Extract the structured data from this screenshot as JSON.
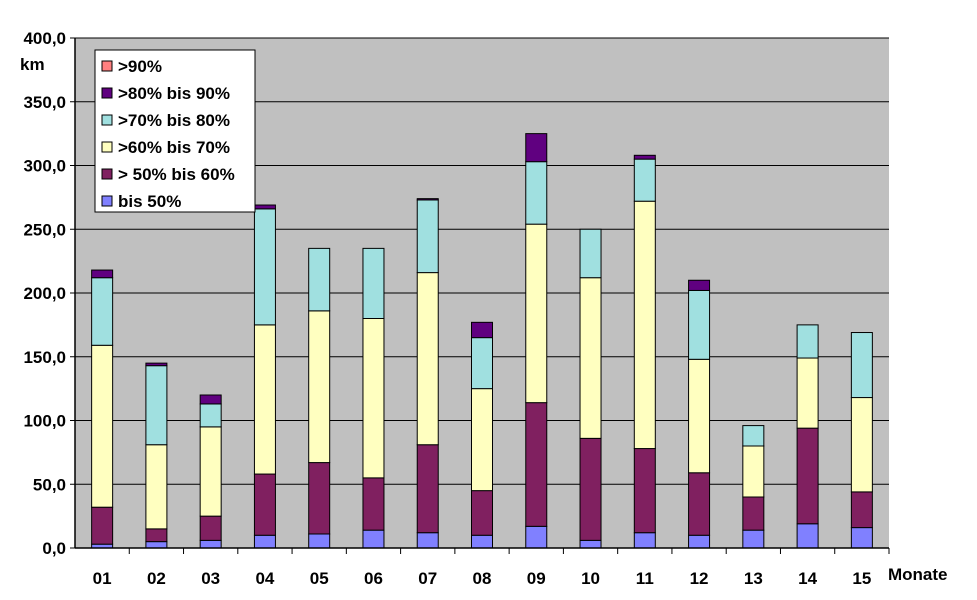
{
  "chart_data": {
    "type": "bar",
    "stacked": true,
    "y_unit": "km",
    "x_unit": "Monate",
    "ylim": [
      0,
      400
    ],
    "ytick_values": [
      0,
      50,
      100,
      150,
      200,
      250,
      300,
      350,
      400
    ],
    "ytick_labels": [
      "0,0",
      "50,0",
      "100,0",
      "150,0",
      "200,0",
      "250,0",
      "300,0",
      "350,0",
      "400,0"
    ],
    "categories": [
      "01",
      "02",
      "03",
      "04",
      "05",
      "06",
      "07",
      "08",
      "09",
      "10",
      "11",
      "12",
      "13",
      "14",
      "15"
    ],
    "grid": "horizontal",
    "plot_background": "#c0c0c0",
    "legend_position": "top-left",
    "series": [
      {
        "name": "bis  50%",
        "color": "#8080ff",
        "values": [
          3,
          5,
          6,
          10,
          11,
          14,
          12,
          10,
          17,
          6,
          12,
          10,
          14,
          19,
          16
        ]
      },
      {
        "name": "> 50% bis 60%",
        "color": "#802060",
        "values": [
          29,
          10,
          19,
          48,
          56,
          41,
          69,
          35,
          97,
          80,
          66,
          49,
          26,
          75,
          28
        ]
      },
      {
        "name": ">60% bis 70%",
        "color": "#ffffc0",
        "values": [
          127,
          66,
          70,
          117,
          119,
          125,
          135,
          80,
          140,
          126,
          194,
          89,
          40,
          55,
          74
        ]
      },
      {
        "name": ">70% bis 80%",
        "color": "#a0e0e0",
        "values": [
          53,
          62,
          18,
          91,
          49,
          55,
          57,
          40,
          49,
          38,
          33,
          54,
          16,
          26,
          51
        ]
      },
      {
        "name": ">80% bis 90%",
        "color": "#600080",
        "values": [
          6,
          2,
          7,
          3,
          0,
          0,
          1,
          12,
          22,
          0,
          3,
          8,
          0,
          0,
          0
        ]
      },
      {
        "name": ">90%",
        "color": "#ff8080",
        "values": [
          0,
          0,
          0,
          0,
          0,
          0,
          0,
          0,
          0,
          0,
          0,
          0,
          0,
          0,
          0
        ]
      }
    ]
  }
}
